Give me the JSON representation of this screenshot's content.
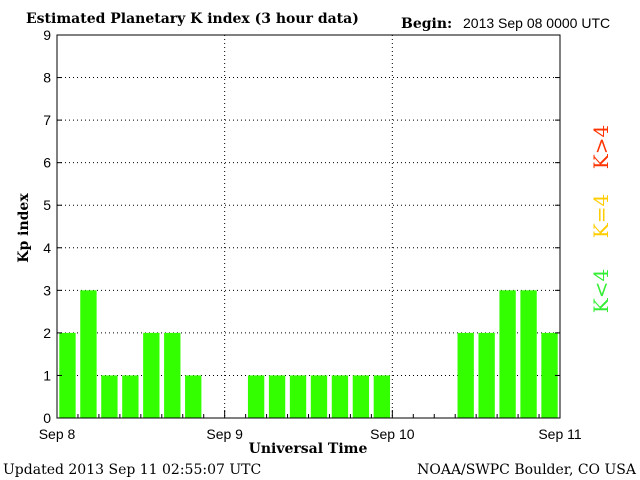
{
  "header": {
    "title": "Estimated Planetary K index (3 hour data)",
    "begin_label": "Begin:",
    "begin_value": "2013 Sep 08 0000 UTC"
  },
  "footer": {
    "updated": "Updated 2013 Sep 11 02:55:07 UTC",
    "source": "NOAA/SWPC Boulder, CO USA"
  },
  "legend": {
    "items": [
      {
        "label": "K>4",
        "color": "#ff3300"
      },
      {
        "label": "K=4",
        "color": "#ffcc00"
      },
      {
        "label": "K<4",
        "color": "#33ee33"
      }
    ]
  },
  "chart_data": {
    "type": "bar",
    "title": "Estimated Planetary K index (3 hour data)",
    "xlabel": "Universal Time",
    "ylabel": "Kp index",
    "ylim": [
      0,
      9
    ],
    "yticks": [
      "0",
      "1",
      "2",
      "3",
      "4",
      "5",
      "6",
      "7",
      "8",
      "9"
    ],
    "xticks": [
      "Sep 8",
      "Sep 9",
      "Sep 10",
      "Sep 11"
    ],
    "bar_color": "#33ff00",
    "grid": "dotted",
    "values": [
      2,
      3,
      1,
      1,
      2,
      2,
      1,
      0,
      0,
      1,
      1,
      1,
      1,
      1,
      1,
      1,
      0,
      0,
      0,
      2,
      2,
      3,
      3,
      2
    ]
  }
}
